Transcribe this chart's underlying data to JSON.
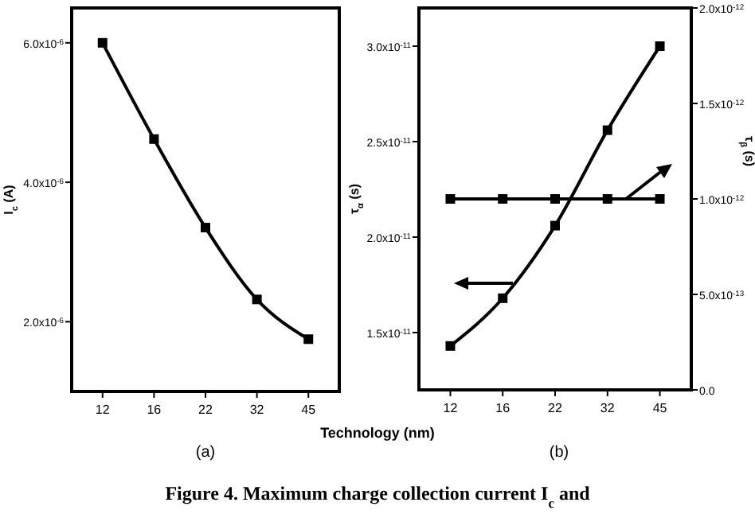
{
  "chart_data": [
    {
      "type": "line",
      "subtitle": "(a)",
      "xlabel": "Technology (nm)",
      "ylabel": "I$_{c}$ (A)",
      "categories": [
        "12",
        "16",
        "22",
        "32",
        "45"
      ],
      "series": [
        {
          "color": "#000000",
          "values": [
            6e-06,
            4.62e-06,
            3.35e-06,
            2.32e-06,
            1.75e-06
          ]
        }
      ],
      "ylim": [
        1e-06,
        6.5e-06
      ],
      "yticks": [
        {
          "value": 2e-06,
          "label": "2.0x10$^{-6}$"
        },
        {
          "value": 4e-06,
          "label": "4.0x10$^{-6}$"
        },
        {
          "value": 6e-06,
          "label": "6.0x10$^{-6}$"
        }
      ],
      "marker": "square",
      "line_style": "solid",
      "grid": false,
      "annotations": [
        "Figure 4. Maximum charge collection current I$_{c}$ and"
      ]
    },
    {
      "type": "line",
      "subtitle": "(b)",
      "ylabel": "τ$_{α}$ (s)",
      "y2label": "τ$_{β}$ (s)",
      "categories": [
        "12",
        "16",
        "22",
        "32",
        "45"
      ],
      "series": [
        {
          "color": "#000000",
          "values": [
            1.43e-11,
            1.68e-11,
            2.06e-11,
            2.56e-11,
            3e-11
          ]
        },
        {
          "color": "#000000",
          "axis": "y2",
          "values": [
            1e-12,
            1e-12,
            1e-12,
            1e-12,
            1e-12
          ]
        }
      ],
      "ylim": [
        1.2e-11,
        3.2e-11
      ],
      "yticks": [
        {
          "value": 1.5e-11,
          "label": "1.5x10$^{-11}$"
        },
        {
          "value": 2e-11,
          "label": "2.0x10$^{-11}$"
        },
        {
          "value": 2.5e-11,
          "label": "2.5x10$^{-11}$"
        },
        {
          "value": 3e-11,
          "label": "3.0x10$^{-11}$"
        }
      ],
      "y2lim": [
        0,
        2e-12
      ],
      "y2ticks": [
        {
          "value": 0,
          "label": "0.0"
        },
        {
          "value": 5e-13,
          "label": "5.0x10$^{-13}$"
        },
        {
          "value": 1e-12,
          "label": "1.0x10$^{-12}$"
        },
        {
          "value": 1.5e-12,
          "label": "1.5x10$^{-12}$"
        },
        {
          "value": 2e-12,
          "label": "2.0x10$^{-12}$"
        }
      ],
      "marker": "square",
      "line_style": "solid",
      "grid": false
    }
  ]
}
